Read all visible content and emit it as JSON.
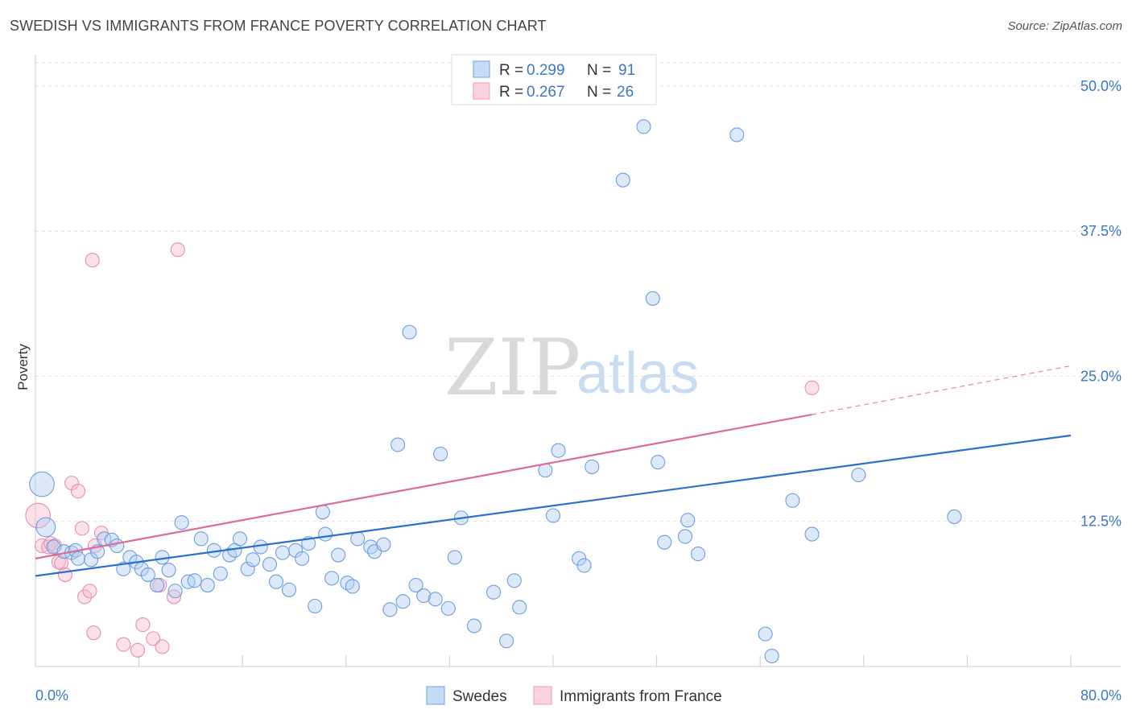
{
  "title": "SWEDISH VS IMMIGRANTS FROM FRANCE POVERTY CORRELATION CHART",
  "source": "Source: ZipAtlas.com",
  "watermark": {
    "zip": "ZIP",
    "atlas": "atlas"
  },
  "chart_data": {
    "type": "scatter",
    "title": "SWEDISH VS IMMIGRANTS FROM FRANCE POVERTY CORRELATION CHART",
    "xlabel": "",
    "ylabel": "Poverty",
    "xlim": [
      0,
      80
    ],
    "ylim": [
      0,
      52
    ],
    "x_tick_labels": [
      "0.0%",
      "80.0%"
    ],
    "y_ticks": [
      12.5,
      25.0,
      37.5,
      50.0
    ],
    "y_tick_labels": [
      "12.5%",
      "25.0%",
      "37.5%",
      "50.0%"
    ],
    "grid": true,
    "legend_placement": "top-center",
    "colors": {
      "swedes": "#7eaee6",
      "france": "#f3a7c0",
      "swedes_line": "#2e6fce",
      "france_line": "#e06b95"
    },
    "stats": [
      {
        "r_label": "R = ",
        "r": "0.299",
        "n_label": "N = ",
        "n": "91"
      },
      {
        "r_label": "R = ",
        "r": "0.267",
        "n_label": "N = ",
        "n": "26"
      }
    ],
    "series": [
      {
        "name": "Swedes",
        "trend": {
          "x": [
            0,
            80
          ],
          "y": [
            7.8,
            19.9
          ]
        },
        "points": [
          [
            0.5,
            15.7,
            1.8
          ],
          [
            0.8,
            12.0,
            1.4
          ],
          [
            1.4,
            10.3,
            1
          ],
          [
            2.2,
            9.9,
            1
          ],
          [
            2.8,
            9.8,
            1
          ],
          [
            3.1,
            10.0,
            1
          ],
          [
            3.3,
            9.3,
            1
          ],
          [
            4.3,
            9.2,
            1
          ],
          [
            4.8,
            9.9,
            1
          ],
          [
            5.3,
            11.0,
            1
          ],
          [
            5.9,
            10.9,
            1
          ],
          [
            6.3,
            10.4,
            1
          ],
          [
            6.8,
            8.4,
            1
          ],
          [
            7.3,
            9.4,
            1
          ],
          [
            7.8,
            9.0,
            1
          ],
          [
            8.2,
            8.4,
            1
          ],
          [
            8.7,
            7.9,
            1
          ],
          [
            9.4,
            7.0,
            1
          ],
          [
            9.8,
            9.4,
            1
          ],
          [
            10.3,
            8.3,
            1
          ],
          [
            10.8,
            6.5,
            1
          ],
          [
            11.3,
            12.4,
            1
          ],
          [
            11.8,
            7.3,
            1
          ],
          [
            12.3,
            7.4,
            1
          ],
          [
            12.8,
            11.0,
            1
          ],
          [
            13.3,
            7.0,
            1
          ],
          [
            13.8,
            10.0,
            1
          ],
          [
            14.3,
            8.0,
            1
          ],
          [
            15.0,
            9.6,
            1
          ],
          [
            15.4,
            10.0,
            1
          ],
          [
            15.8,
            11.0,
            1
          ],
          [
            16.4,
            8.4,
            1
          ],
          [
            16.8,
            9.2,
            1
          ],
          [
            17.4,
            10.3,
            1
          ],
          [
            18.1,
            8.8,
            1
          ],
          [
            18.6,
            7.3,
            1
          ],
          [
            19.1,
            9.8,
            1
          ],
          [
            19.6,
            6.6,
            1
          ],
          [
            20.1,
            10.0,
            1
          ],
          [
            20.6,
            9.3,
            1
          ],
          [
            21.1,
            10.6,
            1
          ],
          [
            21.6,
            5.2,
            1
          ],
          [
            22.2,
            13.3,
            1
          ],
          [
            22.4,
            11.4,
            1
          ],
          [
            22.9,
            7.6,
            1
          ],
          [
            23.4,
            9.6,
            1
          ],
          [
            24.1,
            7.2,
            1
          ],
          [
            24.5,
            6.9,
            1
          ],
          [
            24.9,
            11.0,
            1
          ],
          [
            25.9,
            10.3,
            1
          ],
          [
            26.2,
            9.9,
            1
          ],
          [
            26.9,
            10.5,
            1
          ],
          [
            27.4,
            4.9,
            1
          ],
          [
            28.0,
            19.1,
            1
          ],
          [
            28.4,
            5.6,
            1
          ],
          [
            28.9,
            28.8,
            1
          ],
          [
            29.4,
            7.0,
            1
          ],
          [
            30.0,
            6.1,
            1
          ],
          [
            30.9,
            5.8,
            1
          ],
          [
            31.3,
            18.3,
            1
          ],
          [
            31.9,
            5.0,
            1
          ],
          [
            32.4,
            9.4,
            1
          ],
          [
            32.9,
            12.8,
            1
          ],
          [
            33.9,
            3.5,
            1
          ],
          [
            35.4,
            6.4,
            1
          ],
          [
            36.4,
            2.2,
            1
          ],
          [
            37.0,
            7.4,
            1
          ],
          [
            37.4,
            5.1,
            1
          ],
          [
            39.4,
            16.9,
            1
          ],
          [
            40.0,
            13.0,
            1
          ],
          [
            40.4,
            18.6,
            1
          ],
          [
            42.0,
            9.3,
            1
          ],
          [
            42.4,
            8.7,
            1
          ],
          [
            43.0,
            17.2,
            1
          ],
          [
            45.4,
            41.9,
            1
          ],
          [
            47.0,
            46.5,
            1
          ],
          [
            47.7,
            31.7,
            1
          ],
          [
            48.1,
            17.6,
            1
          ],
          [
            48.6,
            10.7,
            1
          ],
          [
            50.2,
            11.2,
            1
          ],
          [
            50.4,
            12.6,
            1
          ],
          [
            51.2,
            9.7,
            1
          ],
          [
            54.2,
            45.8,
            1
          ],
          [
            56.4,
            2.8,
            1
          ],
          [
            56.9,
            0.9,
            1
          ],
          [
            58.5,
            14.3,
            1
          ],
          [
            60.0,
            11.4,
            1
          ],
          [
            63.6,
            16.5,
            1
          ],
          [
            71.0,
            12.9,
            1
          ]
        ]
      },
      {
        "name": "Immigrants from France",
        "trend": {
          "x": [
            0,
            60
          ],
          "y": [
            9.3,
            21.7
          ]
        },
        "trend_dashed": {
          "x": [
            60,
            80
          ],
          "y": [
            21.7,
            25.9
          ]
        },
        "points": [
          [
            0.2,
            13.0,
            1.8
          ],
          [
            0.5,
            10.4,
            1
          ],
          [
            1.0,
            10.3,
            1
          ],
          [
            1.2,
            10.6,
            1
          ],
          [
            1.5,
            10.4,
            1
          ],
          [
            1.8,
            9.0,
            1
          ],
          [
            2.0,
            8.9,
            1
          ],
          [
            2.3,
            7.9,
            1
          ],
          [
            2.8,
            15.8,
            1
          ],
          [
            3.3,
            15.1,
            1
          ],
          [
            3.6,
            11.9,
            1
          ],
          [
            3.8,
            6.0,
            1
          ],
          [
            4.2,
            6.5,
            1
          ],
          [
            4.6,
            10.4,
            1
          ],
          [
            4.5,
            2.9,
            1
          ],
          [
            4.4,
            35.0,
            1
          ],
          [
            5.1,
            11.5,
            1
          ],
          [
            6.8,
            1.9,
            1
          ],
          [
            7.9,
            1.4,
            1
          ],
          [
            8.3,
            3.6,
            1
          ],
          [
            9.1,
            2.4,
            1
          ],
          [
            9.6,
            7.0,
            1
          ],
          [
            9.8,
            1.7,
            1
          ],
          [
            10.7,
            6.0,
            1
          ],
          [
            11.0,
            35.9,
            1
          ],
          [
            60.0,
            24.0,
            1
          ]
        ]
      }
    ]
  }
}
